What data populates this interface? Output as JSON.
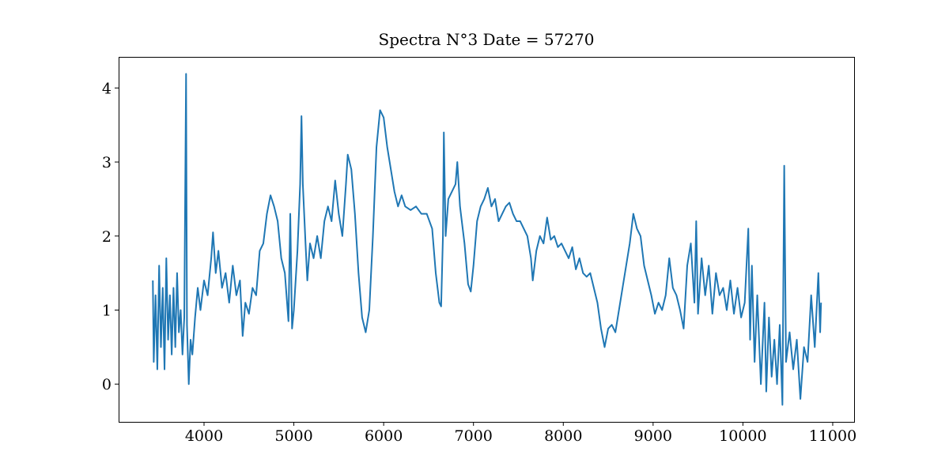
{
  "chart_data": {
    "type": "line",
    "title": "Spectra N°3 Date = 57270",
    "xlim": [
      3049,
      11238
    ],
    "ylim": [
      -0.51,
      4.42
    ],
    "xticks": [
      4000,
      5000,
      6000,
      7000,
      8000,
      9000,
      10000,
      11000
    ],
    "yticks": [
      0,
      1,
      2,
      3,
      4
    ],
    "grid": false,
    "series": [
      {
        "color": "#1f77b4",
        "x": [
          3430,
          3440,
          3460,
          3480,
          3500,
          3520,
          3540,
          3560,
          3580,
          3600,
          3620,
          3640,
          3660,
          3680,
          3700,
          3720,
          3740,
          3760,
          3780,
          3800,
          3810,
          3830,
          3850,
          3870,
          3900,
          3930,
          3960,
          4000,
          4040,
          4080,
          4100,
          4130,
          4160,
          4200,
          4240,
          4280,
          4320,
          4360,
          4400,
          4430,
          4460,
          4500,
          4540,
          4580,
          4620,
          4660,
          4700,
          4740,
          4780,
          4820,
          4860,
          4900,
          4940,
          4960,
          4980,
          5000,
          5040,
          5070,
          5085,
          5100,
          5130,
          5150,
          5180,
          5220,
          5260,
          5300,
          5340,
          5380,
          5420,
          5460,
          5500,
          5540,
          5580,
          5600,
          5640,
          5680,
          5720,
          5760,
          5800,
          5840,
          5880,
          5920,
          5960,
          6000,
          6040,
          6080,
          6120,
          6160,
          6200,
          6240,
          6300,
          6360,
          6420,
          6480,
          6540,
          6580,
          6620,
          6640,
          6660,
          6670,
          6690,
          6720,
          6760,
          6800,
          6820,
          6850,
          6900,
          6940,
          6970,
          7000,
          7040,
          7080,
          7120,
          7160,
          7200,
          7240,
          7280,
          7320,
          7360,
          7400,
          7440,
          7480,
          7520,
          7560,
          7600,
          7640,
          7660,
          7700,
          7740,
          7780,
          7820,
          7860,
          7900,
          7940,
          7980,
          8020,
          8060,
          8100,
          8140,
          8180,
          8220,
          8260,
          8300,
          8340,
          8380,
          8420,
          8460,
          8500,
          8540,
          8580,
          8620,
          8660,
          8700,
          8740,
          8780,
          8820,
          8860,
          8900,
          8940,
          8980,
          9020,
          9060,
          9100,
          9140,
          9180,
          9220,
          9260,
          9300,
          9340,
          9380,
          9420,
          9460,
          9480,
          9500,
          9540,
          9580,
          9620,
          9660,
          9700,
          9740,
          9780,
          9820,
          9860,
          9900,
          9940,
          9980,
          10020,
          10060,
          10080,
          10100,
          10130,
          10160,
          10200,
          10240,
          10260,
          10290,
          10320,
          10350,
          10380,
          10410,
          10440,
          10460,
          10480,
          10520,
          10560,
          10600,
          10640,
          10680,
          10720,
          10760,
          10800,
          10840,
          10860,
          10870
        ],
        "values": [
          1.4,
          0.3,
          1.2,
          0.2,
          1.6,
          0.5,
          1.3,
          0.2,
          1.7,
          0.6,
          1.2,
          0.4,
          1.3,
          0.5,
          1.5,
          0.7,
          1.0,
          0.4,
          0.9,
          4.19,
          0.8,
          0.0,
          0.6,
          0.4,
          0.9,
          1.3,
          1.0,
          1.4,
          1.2,
          1.7,
          2.05,
          1.5,
          1.8,
          1.3,
          1.5,
          1.1,
          1.6,
          1.2,
          1.4,
          0.65,
          1.1,
          0.95,
          1.3,
          1.2,
          1.8,
          1.9,
          2.3,
          2.55,
          2.4,
          2.2,
          1.7,
          1.5,
          0.85,
          2.3,
          0.75,
          1.0,
          1.8,
          2.7,
          3.62,
          2.7,
          1.9,
          1.4,
          1.9,
          1.7,
          2.0,
          1.7,
          2.2,
          2.4,
          2.2,
          2.75,
          2.3,
          2.0,
          2.7,
          3.1,
          2.9,
          2.3,
          1.5,
          0.9,
          0.7,
          1.0,
          2.0,
          3.2,
          3.7,
          3.6,
          3.2,
          2.9,
          2.6,
          2.4,
          2.55,
          2.4,
          2.35,
          2.4,
          2.3,
          2.3,
          2.1,
          1.5,
          1.1,
          1.05,
          2.0,
          3.4,
          2.0,
          2.5,
          2.6,
          2.7,
          3.0,
          2.4,
          1.9,
          1.35,
          1.25,
          1.6,
          2.2,
          2.4,
          2.5,
          2.65,
          2.4,
          2.5,
          2.2,
          2.3,
          2.4,
          2.45,
          2.3,
          2.2,
          2.2,
          2.1,
          2.0,
          1.7,
          1.4,
          1.8,
          2.0,
          1.9,
          2.25,
          1.95,
          2.0,
          1.85,
          1.9,
          1.8,
          1.7,
          1.85,
          1.55,
          1.7,
          1.5,
          1.45,
          1.5,
          1.3,
          1.1,
          0.75,
          0.5,
          0.75,
          0.8,
          0.7,
          1.0,
          1.3,
          1.6,
          1.9,
          2.3,
          2.1,
          2.0,
          1.6,
          1.4,
          1.2,
          0.95,
          1.1,
          1.0,
          1.2,
          1.7,
          1.3,
          1.2,
          1.0,
          0.75,
          1.6,
          1.9,
          1.1,
          2.2,
          0.95,
          1.7,
          1.2,
          1.6,
          0.95,
          1.5,
          1.2,
          1.3,
          1.0,
          1.4,
          0.95,
          1.3,
          0.9,
          1.1,
          2.1,
          0.6,
          1.6,
          0.3,
          1.2,
          0.0,
          1.1,
          -0.1,
          0.9,
          0.1,
          0.6,
          0.0,
          0.8,
          -0.28,
          2.95,
          0.3,
          0.7,
          0.2,
          0.6,
          -0.2,
          0.5,
          0.3,
          1.2,
          0.5,
          1.5,
          0.7,
          1.1
        ]
      }
    ]
  }
}
